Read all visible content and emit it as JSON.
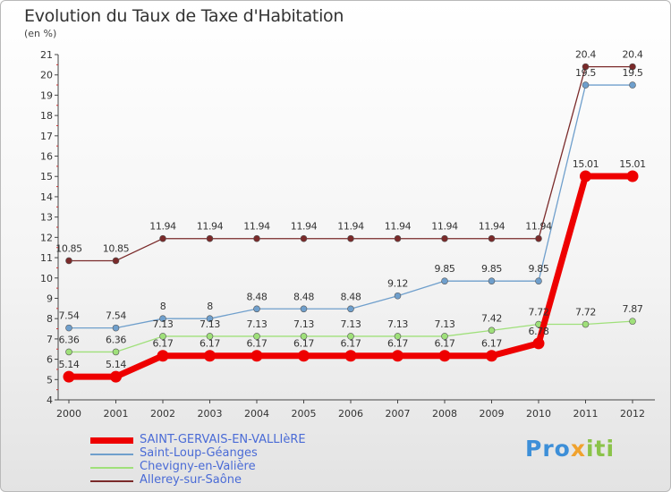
{
  "title": "Evolution du Taux de Taxe d'Habitation",
  "subtitle": "(en %)",
  "brand": {
    "part1": "Pro",
    "part2": "x",
    "part3": "iti"
  },
  "chart_data": {
    "type": "line",
    "title": "Evolution du Taux de Taxe d'Habitation",
    "ylabel": "(en %)",
    "xlabel": "",
    "x": [
      "2000",
      "2001",
      "2002",
      "2003",
      "2004",
      "2005",
      "2006",
      "2007",
      "2008",
      "2009",
      "2010",
      "2011",
      "2012"
    ],
    "ylim": [
      4,
      21
    ],
    "yticks": [
      4,
      5,
      6,
      7,
      8,
      9,
      10,
      11,
      12,
      13,
      14,
      15,
      16,
      17,
      18,
      19,
      20,
      21
    ],
    "grid": false,
    "legend_position": "bottom-left",
    "series": [
      {
        "name": "SAINT-GERVAIS-EN-VALLIèRE",
        "color": "#ee0000",
        "values": [
          5.14,
          5.14,
          6.17,
          6.17,
          6.17,
          6.17,
          6.17,
          6.17,
          6.17,
          6.17,
          6.78,
          15.01,
          15.01
        ],
        "labels": [
          "5.14",
          "5.14",
          "6.17",
          "6.17",
          "6.17",
          "6.17",
          "6.17",
          "6.17",
          "6.17",
          "6.17",
          "6.78",
          "15.01",
          "15.01"
        ]
      },
      {
        "name": "Saint-Loup-Géanges",
        "color": "#6f9fcc",
        "values": [
          7.54,
          7.54,
          8,
          8,
          8.48,
          8.48,
          8.48,
          9.12,
          9.85,
          9.85,
          9.85,
          19.5,
          19.5
        ],
        "labels": [
          "7.54",
          "7.54",
          "8",
          "8",
          "8.48",
          "8.48",
          "8.48",
          "9.12",
          "9.85",
          "9.85",
          "9.85",
          "19.5",
          "19.5"
        ]
      },
      {
        "name": "Chevigny-en-Valière",
        "color": "#9fe07a",
        "values": [
          6.36,
          6.36,
          7.13,
          7.13,
          7.13,
          7.13,
          7.13,
          7.13,
          7.13,
          7.42,
          7.72,
          7.72,
          7.87
        ],
        "labels": [
          "6.36",
          "6.36",
          "7.13",
          "7.13",
          "7.13",
          "7.13",
          "7.13",
          "7.13",
          "7.13",
          "7.42",
          "7.72",
          "7.72",
          "7.87"
        ]
      },
      {
        "name": "Allerey-sur-Saône",
        "color": "#7a2a2a",
        "values": [
          10.85,
          10.85,
          11.94,
          11.94,
          11.94,
          11.94,
          11.94,
          11.94,
          11.94,
          11.94,
          11.94,
          20.4,
          20.4
        ],
        "labels": [
          "10.85",
          "10.85",
          "11.94",
          "11.94",
          "11.94",
          "11.94",
          "11.94",
          "11.94",
          "11.94",
          "11.94",
          "11.94",
          "20.4",
          "20.4"
        ]
      }
    ]
  }
}
